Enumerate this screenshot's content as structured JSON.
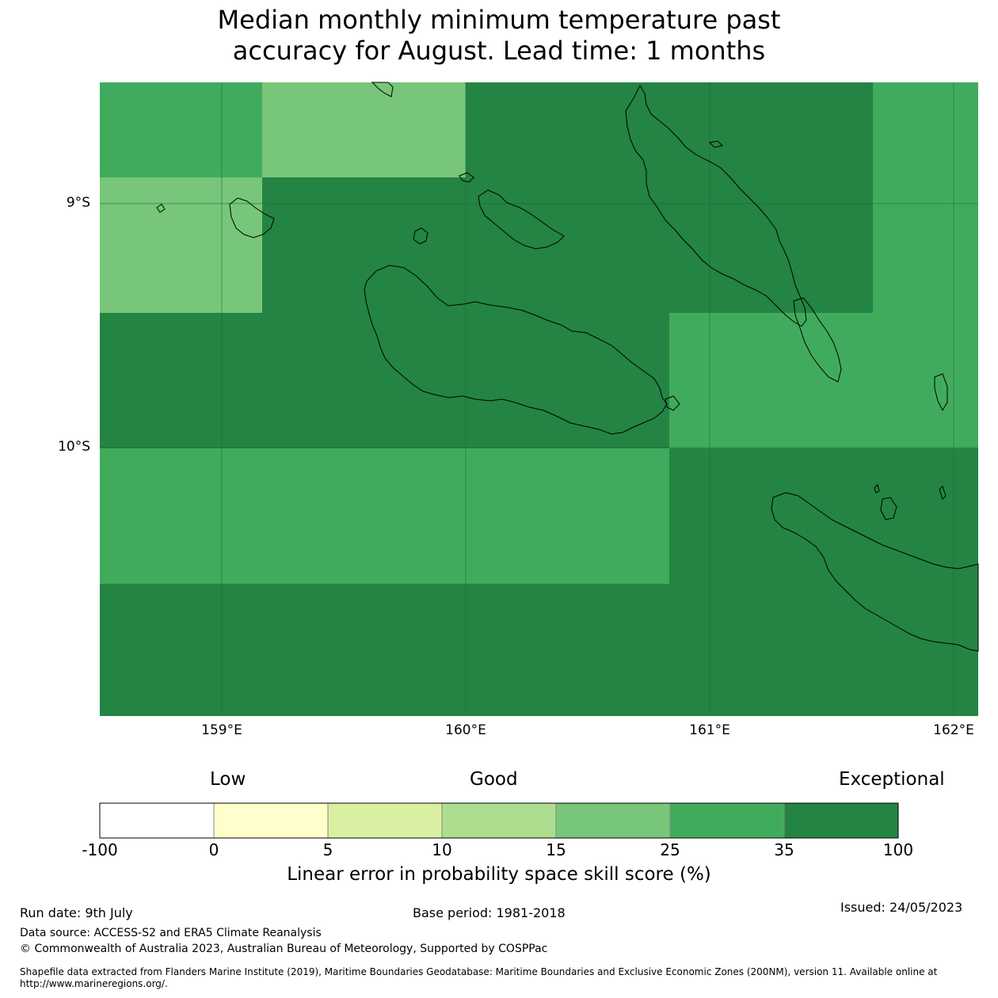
{
  "title": {
    "line1": "Median monthly minimum temperature past",
    "line2": "accuracy for August. Lead time: 1 months"
  },
  "map": {
    "lat_labels": [
      "9°S",
      "10°S"
    ],
    "lon_labels": [
      "159°E",
      "160°E",
      "161°E",
      "162°E"
    ],
    "colors": {
      "exceptional": "#238443",
      "very_good": "#41ab5d",
      "good": "#78c679",
      "coast": "#000000"
    }
  },
  "colorbar": {
    "categories": [
      "Low",
      "Good",
      "Exceptional"
    ],
    "ticks": [
      "-100",
      "0",
      "5",
      "10",
      "15",
      "25",
      "35",
      "100"
    ],
    "colors": [
      "#ffffff",
      "#ffffcc",
      "#d9f0a3",
      "#addd8e",
      "#78c679",
      "#41ab5d",
      "#238443"
    ],
    "label": "Linear error in probability space skill score (%)"
  },
  "footer": {
    "run_date": "Run date: 9th July",
    "base_period": "Base period: 1981-2018",
    "issued": "Issued: 24/05/2023",
    "data_source": "Data source: ACCESS-S2 and ERA5 Climate Reanalysis",
    "copyright": "© Commonwealth of Australia 2023, Australian Bureau of Meteorology, Supported by COSPPac",
    "shapefile_line1": "Shapefile data extracted from Flanders Marine Institute (2019), Maritime Boundaries Geodatabase: Maritime Boundaries and Exclusive Economic Zones (200NM), version 11. Available online at",
    "shapefile_line2": "http://www.marineregions.org/."
  }
}
